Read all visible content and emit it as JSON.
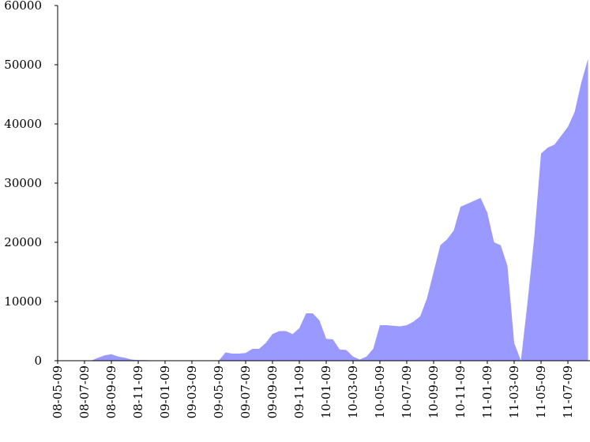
{
  "chart_data": {
    "type": "area",
    "color": "#9999ff",
    "categories": [
      "08-05-09",
      null,
      null,
      null,
      "08-07-09",
      null,
      null,
      null,
      "08-09-09",
      null,
      null,
      null,
      "08-11-09",
      null,
      null,
      null,
      "09-01-09",
      null,
      null,
      null,
      "09-03-09",
      null,
      null,
      null,
      "09-05-09",
      null,
      null,
      null,
      "09-07-09",
      null,
      null,
      null,
      "09-09-09",
      null,
      null,
      null,
      "09-11-09",
      null,
      null,
      null,
      "10-01-09",
      null,
      null,
      null,
      "10-03-09",
      null,
      null,
      null,
      "10-05-09",
      null,
      null,
      null,
      "10-07-09",
      null,
      null,
      null,
      "10-09-09",
      null,
      null,
      null,
      "10-11-09",
      null,
      null,
      null,
      "11-01-09",
      null,
      null,
      null,
      "11-03-09",
      null,
      null,
      null,
      "11-05-09",
      null,
      null,
      null,
      "11-07-09",
      null,
      null,
      null
    ],
    "values": [
      0,
      0,
      0,
      0,
      0,
      0,
      500,
      900,
      1100,
      700,
      500,
      200,
      100,
      100,
      50,
      50,
      50,
      0,
      0,
      0,
      0,
      0,
      0,
      0,
      0,
      1400,
      1200,
      1200,
      1300,
      2000,
      2000,
      3000,
      4500,
      5000,
      5000,
      4500,
      5500,
      8000,
      8000,
      6800,
      3700,
      3600,
      1900,
      1800,
      700,
      200,
      700,
      2000,
      6000,
      6000,
      5900,
      5800,
      6000,
      6600,
      7500,
      10500,
      15000,
      19500,
      20500,
      22000,
      26000,
      26500,
      27000,
      27500,
      25000,
      20000,
      19500,
      16000,
      3000,
      0,
      10000,
      21000,
      35000,
      36000,
      36500,
      38000,
      39500,
      42000,
      47000,
      51000
    ],
    "ylim": [
      0,
      60000
    ],
    "yticks": [
      0,
      10000,
      20000,
      30000,
      40000,
      50000,
      60000
    ]
  }
}
